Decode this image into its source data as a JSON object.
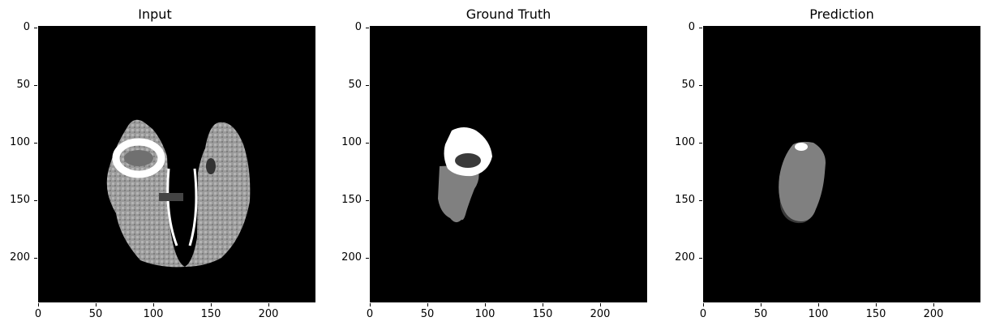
{
  "panels": [
    {
      "title": "Input"
    },
    {
      "title": "Ground Truth"
    },
    {
      "title": "Prediction"
    }
  ],
  "ticks": {
    "y": [
      "0",
      "50",
      "100",
      "150",
      "200"
    ],
    "x": [
      "0",
      "50",
      "100",
      "150",
      "200"
    ]
  },
  "colors": {
    "background": "#000000",
    "white_region": "#ffffff",
    "gray_region": "#808080",
    "dark_region": "#3a3a3a"
  }
}
